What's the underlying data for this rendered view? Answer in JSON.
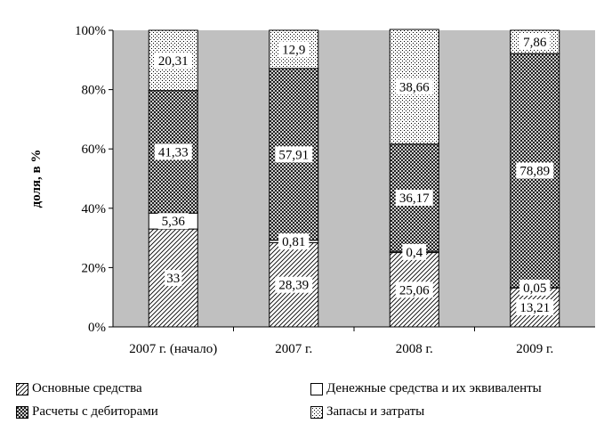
{
  "chart_data": {
    "type": "bar",
    "stacked": true,
    "percent": true,
    "categories": [
      "2007 г. (начало)",
      "2007 г.",
      "2008 г.",
      "2009 г."
    ],
    "series": [
      {
        "name": "Основные средства",
        "values": [
          33,
          28.39,
          25.06,
          13.21
        ],
        "labels": [
          "33",
          "28,39",
          "25,06",
          "13,21"
        ],
        "pattern": "hatch-diag"
      },
      {
        "name": "Денежные средства и их эквиваленты",
        "values": [
          5.36,
          0.81,
          0.4,
          0.05
        ],
        "labels": [
          "5,36",
          "0,81",
          "0,4",
          "0,05"
        ],
        "pattern": "white"
      },
      {
        "name": "Расчеты с дебиторами",
        "values": [
          41.33,
          57.91,
          36.17,
          78.89
        ],
        "labels": [
          "41,33",
          "57,91",
          "36,17",
          "78,89"
        ],
        "pattern": "crosshatch"
      },
      {
        "name": "Запасы и затраты",
        "values": [
          20.31,
          12.9,
          38.66,
          7.86
        ],
        "labels": [
          "20,31",
          "12,9",
          "38,66",
          "7,86"
        ],
        "pattern": "dots"
      }
    ],
    "ylabel": "доля, в %",
    "ylim": [
      0,
      100
    ],
    "yticks": [
      "0%",
      "20%",
      "40%",
      "60%",
      "80%",
      "100%"
    ],
    "plot_background": "#c0c0c0",
    "legend_position": "bottom"
  }
}
